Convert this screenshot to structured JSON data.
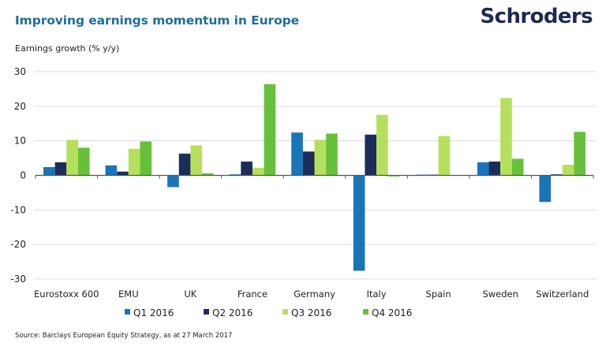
{
  "header": {
    "title": "Improving earnings momentum in Europe",
    "brand": "Schroders"
  },
  "footer": {
    "source": "Source: Barclays European Equity Strategy, as at 27 March 2017"
  },
  "chart_data": {
    "type": "bar",
    "title": "Improving earnings momentum in Europe",
    "ylabel": "Earnings growth (% y/y)",
    "xlabel": "",
    "ylim": [
      -30,
      30
    ],
    "yticks": [
      30,
      20,
      10,
      0,
      -10,
      -20,
      -30
    ],
    "grid": true,
    "legend_position": "bottom",
    "categories": [
      "Eurostoxx 600",
      "EMU",
      "UK",
      "France",
      "Germany",
      "Italy",
      "Spain",
      "Sweden",
      "Switzerland"
    ],
    "series": [
      {
        "name": "Q1 2016",
        "color": "#1a75b8",
        "values": [
          2.4,
          2.9,
          -3.4,
          0.3,
          12.4,
          -27.6,
          0.2,
          3.8,
          -7.7
        ]
      },
      {
        "name": "Q2 2016",
        "color": "#1c2d5a",
        "values": [
          3.8,
          1.1,
          6.3,
          4.0,
          6.9,
          11.8,
          0.2,
          4.0,
          0.3
        ]
      },
      {
        "name": "Q3 2016",
        "color": "#b6e05c",
        "values": [
          10.3,
          7.7,
          8.7,
          2.2,
          10.3,
          17.5,
          11.4,
          22.4,
          3.1
        ]
      },
      {
        "name": "Q4 2016",
        "color": "#67c03b",
        "values": [
          8.0,
          9.8,
          0.6,
          26.4,
          12.1,
          -0.3,
          0.1,
          4.8,
          12.6
        ]
      }
    ]
  }
}
